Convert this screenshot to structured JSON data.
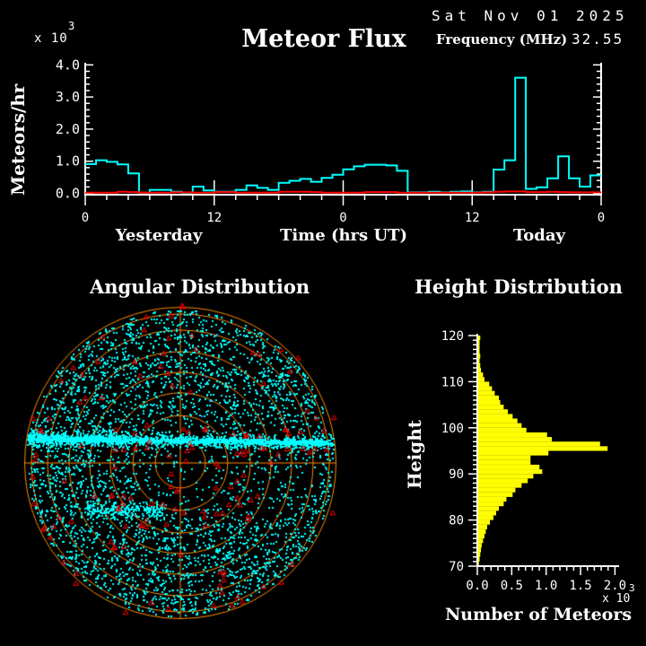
{
  "header": {
    "title": "Meteor Flux",
    "date": "Sat Nov 01 2025",
    "frequency_label": "Frequency (MHz)",
    "frequency_value": "32.55",
    "y_scale_base": "x 10",
    "y_scale_exp": "3"
  },
  "colors": {
    "background": "#000000",
    "text": "#FFFFFF",
    "flux_line": "#00FFFF",
    "reference_line": "#FF0000",
    "polar_grid": "#FF8C00",
    "scatter_echo": "#00FFFF",
    "scatter_marker": "#FF0000",
    "scatter_marker_alt": "#5577FF",
    "histogram": "#FFFF00"
  },
  "chart_data": [
    {
      "id": "flux",
      "type": "line",
      "line_style": "step",
      "title": "Meteor Flux",
      "ylabel": "Meteors/hr",
      "y_scale_note": "x 10^3",
      "xlabel": "Time (hrs UT)",
      "x_section_labels": [
        "Yesterday",
        "Today"
      ],
      "x_tick_labels": [
        "0",
        "12",
        "0",
        "12",
        "0"
      ],
      "x_tick_hours": [
        0,
        12,
        24,
        36,
        48
      ],
      "x_minor_step_hours": 2,
      "xlim_hours": [
        0,
        48
      ],
      "ylim": [
        0,
        4
      ],
      "y_tick_values": [
        0,
        1,
        2,
        3,
        4
      ],
      "y_tick_labels": [
        "0.0",
        "1.0",
        "2.0",
        "3.0",
        "4.0"
      ],
      "y_minor_step": 0.2,
      "bin_hours": 1,
      "grid": false,
      "series": [
        {
          "name": "meteor flux (x1000 meteors/hr)",
          "color": "#00FFFF",
          "values": [
            0.91,
            1.03,
            0.98,
            0.9,
            0.62,
            0.02,
            0.11,
            0.11,
            0.05,
            0.02,
            0.21,
            0.09,
            0.05,
            0.05,
            0.11,
            0.25,
            0.17,
            0.11,
            0.33,
            0.39,
            0.45,
            0.36,
            0.48,
            0.58,
            0.75,
            0.84,
            0.89,
            0.89,
            0.87,
            0.7,
            0.03,
            0.03,
            0.05,
            0.03,
            0.05,
            0.06,
            0.03,
            0.05,
            0.74,
            1.03,
            3.6,
            0.14,
            0.19,
            0.47,
            1.15,
            0.47,
            0.21,
            0.56
          ]
        },
        {
          "name": "reference level",
          "color": "#FF0000",
          "values": [
            0.02,
            0.02,
            0.02,
            0.05,
            0.04,
            0.02,
            0.02,
            0.02,
            0.03,
            0.03,
            0.02,
            0.02,
            0.04,
            0.04,
            0.02,
            0.02,
            0.02,
            0.02,
            0.05,
            0.05,
            0.05,
            0.04,
            0.02,
            0.02,
            0.02,
            0.02,
            0.04,
            0.04,
            0.04,
            0.02,
            0.02,
            0.02,
            0.02,
            0.02,
            0.02,
            0.02,
            0.02,
            0.03,
            0.05,
            0.06,
            0.06,
            0.04,
            0.04,
            0.05,
            0.04,
            0.03,
            0.03,
            0.03
          ]
        }
      ]
    },
    {
      "id": "angular",
      "type": "scatter",
      "title": "Angular Distribution",
      "projection": "all-sky polar, concentric elevation rings with center crosshair",
      "grid_color": "#FF8C00",
      "rings_r_fraction": [
        0.161,
        0.305,
        0.45,
        0.582,
        0.715,
        0.853,
        0.957,
        1.0
      ],
      "points": {
        "seed": 20251101,
        "echo_color": "#00FFFF",
        "field_count": 4300,
        "center_void_radius_fraction": 0.32,
        "band_y_offset": -25,
        "band_tilt": 0.0147,
        "band_count": 1000,
        "band_core_count": 800,
        "band_left_count": 260,
        "cluster_count": 210,
        "cluster": {
          "dx_min": -104,
          "dx_max": -19,
          "dy": 52
        },
        "blue_count": 14,
        "blue_color": "#5577FF",
        "triangle_color": "#FF0000",
        "triangles": {
          "uniform": 70,
          "band": 35,
          "lower": 30,
          "rim": 18
        }
      }
    },
    {
      "id": "height",
      "type": "bar",
      "orientation": "horizontal",
      "title": "Height Distribution",
      "ylabel": "Height",
      "xlabel": "Number of Meteors",
      "x_scale_base": "x 10",
      "x_scale_exp": "3",
      "bar_color": "#FFFF00",
      "x_tick_values": [
        0,
        0.5,
        1.0,
        1.5,
        2.0
      ],
      "x_tick_labels": [
        "0.0",
        "0.5",
        "1.0",
        "1.5",
        "2.0"
      ],
      "x_minor_step": 0.1,
      "xlim": [
        0,
        2.05
      ],
      "ylim": [
        70,
        120
      ],
      "y_tick_values": [
        70,
        80,
        90,
        100,
        110,
        120
      ],
      "y_tick_labels": [
        "70",
        "80",
        "90",
        "100",
        "110",
        "120"
      ],
      "y_minor_step": 1,
      "bin_km": 1,
      "height_start_km": 70,
      "values": [
        0.01,
        0.02,
        0.03,
        0.04,
        0.05,
        0.07,
        0.09,
        0.11,
        0.13,
        0.17,
        0.22,
        0.26,
        0.3,
        0.37,
        0.41,
        0.5,
        0.54,
        0.63,
        0.72,
        0.8,
        0.93,
        0.89,
        0.76,
        0.76,
        1.02,
        1.88,
        1.77,
        1.07,
        1.0,
        0.7,
        0.63,
        0.57,
        0.5,
        0.43,
        0.37,
        0.32,
        0.3,
        0.24,
        0.2,
        0.16,
        0.09,
        0.07,
        0.04,
        0.03,
        0.02,
        0.03,
        0.02,
        0.02,
        0.02,
        0.03
      ]
    }
  ]
}
